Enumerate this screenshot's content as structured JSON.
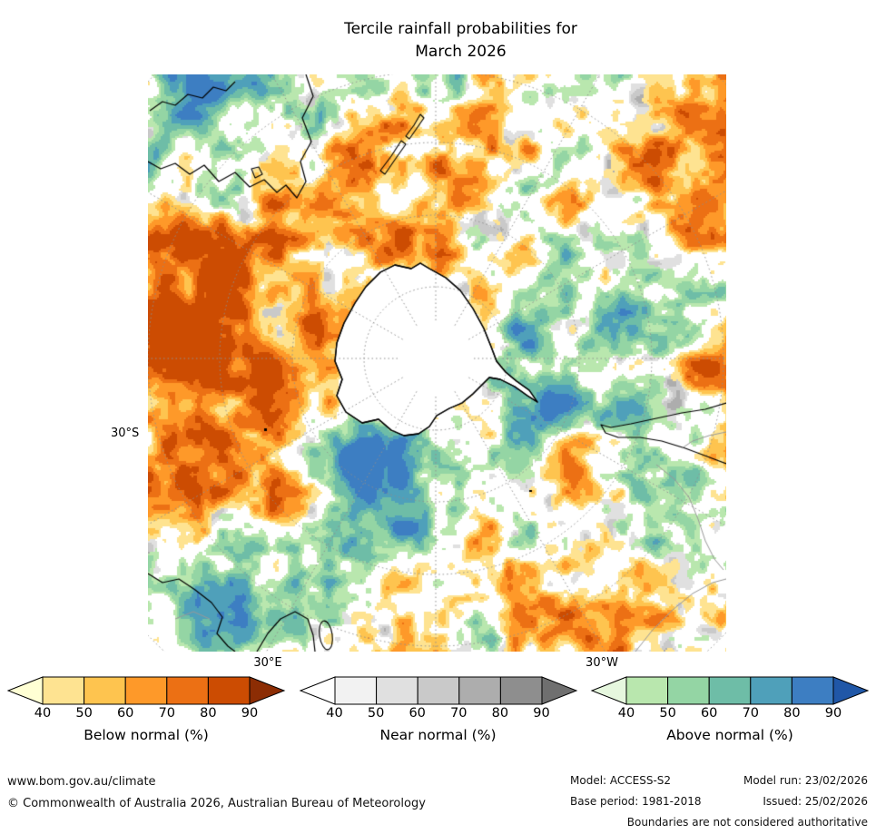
{
  "title": {
    "line1": "Tercile rainfall probabilities for",
    "line2": "March 2026"
  },
  "map": {
    "lat_label": "30°S",
    "lon_label_left": "30°E",
    "lon_label_right": "30°W",
    "graticule_color": "#8f8f8f",
    "coastline_color": "#000000",
    "boundary_color": "#999999"
  },
  "legends": [
    {
      "label": "Below normal (%)",
      "ticks": [
        "40",
        "50",
        "60",
        "70",
        "80",
        "90"
      ],
      "tip_left": "#ffffd4",
      "colors": [
        "#fee391",
        "#fec44f",
        "#fe9929",
        "#ec7014",
        "#cc4c02"
      ],
      "tip_right": "#8c2d04"
    },
    {
      "label": "Near normal (%)",
      "ticks": [
        "40",
        "50",
        "60",
        "70",
        "80",
        "90"
      ],
      "tip_left": "#ffffff",
      "colors": [
        "#f2f2f2",
        "#e0e0e0",
        "#c9c9c9",
        "#adadad",
        "#8e8e8e"
      ],
      "tip_right": "#6f6f6f"
    },
    {
      "label": "Above normal (%)",
      "ticks": [
        "40",
        "50",
        "60",
        "70",
        "80",
        "90"
      ],
      "tip_left": "#e6f7de",
      "colors": [
        "#b9e7ae",
        "#94d5a4",
        "#6ebda7",
        "#4fa0ba",
        "#3d7ec2"
      ],
      "tip_right": "#2057a7"
    }
  ],
  "footer": {
    "url": "www.bom.gov.au/climate",
    "copyright": "© Commonwealth of Australia 2026, Australian Bureau of Meteorology",
    "model": "Model: ACCESS-S2",
    "model_run": "Model run: 23/02/2026",
    "base_period": "Base period: 1981-2018",
    "issued": "Issued: 25/02/2026",
    "disclaimer": "Boundaries are not considered authoritative"
  }
}
